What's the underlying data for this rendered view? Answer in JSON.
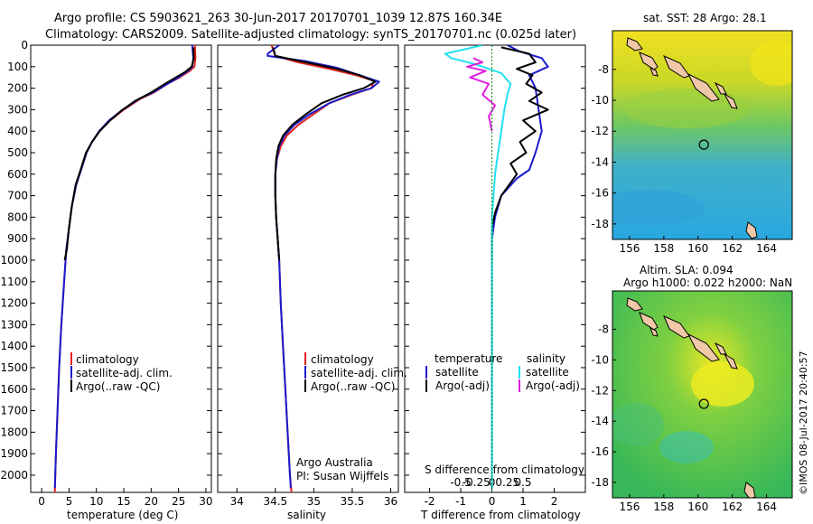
{
  "header": {
    "line1": "Argo profile: CS 5903621_263 30-Jun-2017 20170701_1039 12.87S 160.34E",
    "line2": "Climatology: CARS2009. Satellite-adjusted climatology: synTS_20170701.nc (0.025d later)"
  },
  "side_stamp": "©IMOS 08-Jul-2017 20:40:57",
  "colors": {
    "climatology": "#e02020",
    "satellite": "#1a1acc",
    "argo": "#000000",
    "sat_salinity": "#22e0ee",
    "argo_salinity": "#e020e0"
  },
  "chart_data": [
    {
      "id": "temperature",
      "type": "line",
      "xlabel": "temperature (deg C)",
      "ylabel": "",
      "xlim": [
        -2,
        31
      ],
      "ylim": [
        2080,
        0
      ],
      "xticks": [
        0,
        5,
        10,
        15,
        20,
        25,
        30
      ],
      "yticks": [
        0,
        100,
        200,
        300,
        400,
        500,
        600,
        700,
        800,
        900,
        1000,
        1100,
        1200,
        1300,
        1400,
        1500,
        1600,
        1700,
        1800,
        1900,
        2000
      ],
      "legend": [
        "climatology",
        "satellite-adj. clim.",
        "Argo(..raw -QC)"
      ],
      "legend_position": "lower-center",
      "series": [
        {
          "name": "climatology",
          "color": "#e02020",
          "points": [
            [
              28,
              0
            ],
            [
              28.1,
              60
            ],
            [
              27.9,
              100
            ],
            [
              27,
              120
            ],
            [
              25.2,
              150
            ],
            [
              23,
              180
            ],
            [
              20.5,
              220
            ],
            [
              18,
              250
            ],
            [
              15,
              300
            ],
            [
              12.5,
              350
            ],
            [
              10.5,
              400
            ],
            [
              9.2,
              450
            ],
            [
              8.2,
              500
            ],
            [
              7.2,
              580
            ],
            [
              6.3,
              650
            ],
            [
              5.5,
              750
            ],
            [
              5,
              850
            ],
            [
              4.5,
              950
            ],
            [
              4.1,
              1100
            ],
            [
              3.6,
              1300
            ],
            [
              3.2,
              1500
            ],
            [
              2.9,
              1700
            ],
            [
              2.6,
              1900
            ],
            [
              2.4,
              2080
            ]
          ]
        },
        {
          "name": "satellite-adj. clim.",
          "color": "#1a1acc",
          "points": [
            [
              27.5,
              0
            ],
            [
              27.7,
              60
            ],
            [
              27.5,
              100
            ],
            [
              26.7,
              120
            ],
            [
              25,
              150
            ],
            [
              23,
              180
            ],
            [
              20.3,
              220
            ],
            [
              17.8,
              250
            ],
            [
              14.8,
              300
            ],
            [
              12.3,
              350
            ],
            [
              10.5,
              400
            ],
            [
              9.2,
              450
            ],
            [
              8.2,
              500
            ],
            [
              7.2,
              580
            ],
            [
              6.3,
              650
            ],
            [
              5.5,
              750
            ],
            [
              5,
              850
            ],
            [
              4.5,
              950
            ],
            [
              4.1,
              1100
            ],
            [
              3.6,
              1300
            ],
            [
              3.2,
              1500
            ],
            [
              2.9,
              1700
            ],
            [
              2.6,
              1900
            ],
            [
              2.4,
              2060
            ]
          ]
        },
        {
          "name": "Argo(..raw -QC)",
          "color": "#000000",
          "points": [
            [
              27.7,
              10
            ],
            [
              27.8,
              60
            ],
            [
              27.4,
              100
            ],
            [
              26.2,
              125
            ],
            [
              24.5,
              150
            ],
            [
              22.5,
              180
            ],
            [
              20,
              220
            ],
            [
              17,
              260
            ],
            [
              14.8,
              300
            ],
            [
              12.5,
              350
            ],
            [
              10.6,
              400
            ],
            [
              9.2,
              450
            ],
            [
              8.1,
              500
            ],
            [
              7.1,
              580
            ],
            [
              6.2,
              650
            ],
            [
              5.5,
              750
            ],
            [
              5,
              850
            ],
            [
              4.6,
              950
            ],
            [
              4.2,
              1000
            ]
          ]
        }
      ]
    },
    {
      "id": "salinity",
      "type": "line",
      "xlabel": "salinity",
      "xlim": [
        33.75,
        36.1
      ],
      "ylim": [
        2080,
        0
      ],
      "xticks": [
        34,
        34.5,
        35,
        35.5,
        36
      ],
      "legend": [
        "climatology",
        "satellite-adj. clim.",
        "Argo(..raw -QC)"
      ],
      "legend_position": "lower-center",
      "annotation": [
        "Argo Australia",
        "PI: Susan Wijffels"
      ],
      "series": [
        {
          "name": "climatology",
          "color": "#e02020",
          "points": [
            [
              34.45,
              0
            ],
            [
              34.5,
              50
            ],
            [
              34.8,
              80
            ],
            [
              35.2,
              110
            ],
            [
              35.55,
              140
            ],
            [
              35.78,
              165
            ],
            [
              35.75,
              200
            ],
            [
              35.5,
              230
            ],
            [
              35.2,
              270
            ],
            [
              35.0,
              320
            ],
            [
              34.8,
              370
            ],
            [
              34.65,
              420
            ],
            [
              34.57,
              470
            ],
            [
              34.52,
              530
            ],
            [
              34.5,
              600
            ],
            [
              34.5,
              700
            ],
            [
              34.51,
              800
            ],
            [
              34.53,
              900
            ],
            [
              34.55,
              1000
            ],
            [
              34.57,
              1200
            ],
            [
              34.6,
              1400
            ],
            [
              34.63,
              1600
            ],
            [
              34.66,
              1800
            ],
            [
              34.69,
              2000
            ],
            [
              34.71,
              2080
            ]
          ]
        },
        {
          "name": "satellite-adj. clim.",
          "color": "#1a1acc",
          "points": [
            [
              34.55,
              0
            ],
            [
              34.4,
              40
            ],
            [
              34.4,
              50
            ],
            [
              34.9,
              75
            ],
            [
              35.3,
              105
            ],
            [
              35.6,
              140
            ],
            [
              35.85,
              170
            ],
            [
              35.75,
              200
            ],
            [
              35.48,
              230
            ],
            [
              35.2,
              270
            ],
            [
              34.95,
              320
            ],
            [
              34.75,
              370
            ],
            [
              34.62,
              420
            ],
            [
              34.55,
              470
            ],
            [
              34.52,
              530
            ],
            [
              34.5,
              600
            ],
            [
              34.5,
              700
            ],
            [
              34.51,
              800
            ],
            [
              34.53,
              900
            ],
            [
              34.55,
              1000
            ],
            [
              34.57,
              1200
            ],
            [
              34.6,
              1400
            ],
            [
              34.63,
              1600
            ],
            [
              34.66,
              1800
            ],
            [
              34.69,
              2000
            ],
            [
              34.7,
              2060
            ]
          ]
        },
        {
          "name": "Argo(..raw -QC)",
          "color": "#000000",
          "points": [
            [
              34.47,
              10
            ],
            [
              34.5,
              50
            ],
            [
              34.9,
              80
            ],
            [
              35.3,
              110
            ],
            [
              35.6,
              140
            ],
            [
              35.8,
              170
            ],
            [
              35.65,
              200
            ],
            [
              35.38,
              230
            ],
            [
              35.1,
              270
            ],
            [
              34.9,
              320
            ],
            [
              34.72,
              370
            ],
            [
              34.6,
              420
            ],
            [
              34.54,
              470
            ],
            [
              34.51,
              530
            ],
            [
              34.5,
              600
            ],
            [
              34.5,
              700
            ],
            [
              34.51,
              800
            ],
            [
              34.53,
              900
            ],
            [
              34.55,
              1000
            ]
          ]
        }
      ]
    },
    {
      "id": "difference",
      "type": "line",
      "xlabel": "T difference from climatology",
      "xlabel_top": "S difference from climatology",
      "xlim": [
        -2.8,
        3.0
      ],
      "ylim": [
        2080,
        0
      ],
      "xticks": [
        -2,
        -1,
        0,
        1,
        2
      ],
      "xticks_top": [
        "-0.5",
        "-0.25",
        "0",
        "0.25",
        "0.5"
      ],
      "legend_temperature_title": "temperature",
      "legend_salinity_title": "salinity",
      "legend_temperature": [
        "satellite",
        "Argo(-adj)"
      ],
      "legend_salinity": [
        "satellite",
        "Argo(-adj)"
      ],
      "series": [
        {
          "name": "temperature satellite",
          "color": "#1a1acc",
          "points": [
            [
              0.5,
              0
            ],
            [
              0.9,
              30
            ],
            [
              1.6,
              60
            ],
            [
              1.8,
              100
            ],
            [
              1.2,
              140
            ],
            [
              1.4,
              200
            ],
            [
              1.5,
              300
            ],
            [
              1.6,
              400
            ],
            [
              1.4,
              500
            ],
            [
              1.2,
              580
            ],
            [
              0.8,
              620
            ],
            [
              0.3,
              700
            ],
            [
              0.1,
              800
            ],
            [
              0.0,
              900
            ],
            [
              0.0,
              2060
            ]
          ]
        },
        {
          "name": "temperature Argo(-adj)",
          "color": "#000000",
          "points": [
            [
              0.3,
              10
            ],
            [
              1.2,
              40
            ],
            [
              1.4,
              80
            ],
            [
              0.8,
              110
            ],
            [
              1.3,
              140
            ],
            [
              1.1,
              180
            ],
            [
              1.6,
              220
            ],
            [
              1.2,
              260
            ],
            [
              1.8,
              300
            ],
            [
              1.0,
              350
            ],
            [
              1.4,
              400
            ],
            [
              0.9,
              450
            ],
            [
              1.1,
              500
            ],
            [
              0.6,
              550
            ],
            [
              0.8,
              600
            ],
            [
              0.3,
              700
            ],
            [
              0.1,
              780
            ],
            [
              0.0,
              850
            ],
            [
              0.0,
              1000
            ]
          ]
        },
        {
          "name": "salinity satellite",
          "color": "#22e0ee",
          "points": [
            [
              -0.3,
              0
            ],
            [
              -1.5,
              40
            ],
            [
              -1.3,
              60
            ],
            [
              -0.5,
              90
            ],
            [
              0.3,
              130
            ],
            [
              0.6,
              180
            ],
            [
              0.5,
              230
            ],
            [
              0.4,
              300
            ],
            [
              0.3,
              400
            ],
            [
              0.2,
              500
            ],
            [
              0.1,
              600
            ],
            [
              0.05,
              700
            ],
            [
              0.0,
              800
            ],
            [
              0.0,
              2060
            ]
          ]
        },
        {
          "name": "salinity Argo(-adj)",
          "color": "#e020e0",
          "points": [
            [
              -0.6,
              60
            ],
            [
              -0.3,
              80
            ],
            [
              -0.8,
              100
            ],
            [
              -0.2,
              120
            ],
            [
              -0.7,
              150
            ],
            [
              -0.1,
              180
            ],
            [
              -0.3,
              230
            ],
            [
              0.1,
              280
            ],
            [
              -0.1,
              330
            ],
            [
              0.0,
              400
            ]
          ]
        }
      ]
    }
  ],
  "maps": [
    {
      "id": "sst",
      "title": "sat. SST: 28  Argo: 28.1",
      "lon_ticks": [
        "156",
        "158",
        "160",
        "162",
        "164"
      ],
      "lat_ticks": [
        "-8",
        "-10",
        "-12",
        "-14",
        "-16",
        "-18"
      ],
      "lon_range": [
        155,
        165.5
      ],
      "lat_range": [
        -19,
        -5.5
      ],
      "argo_location": {
        "lon": 160.34,
        "lat": -12.87
      }
    },
    {
      "id": "sla",
      "title_line1": "Altim. SLA: 0.094",
      "title_line2": "Argo h1000: 0.022 h2000: NaN",
      "lon_ticks": [
        "156",
        "158",
        "160",
        "162",
        "164"
      ],
      "lat_ticks": [
        "-8",
        "-10",
        "-12",
        "-14",
        "-16",
        "-18"
      ],
      "lon_range": [
        155,
        165.5
      ],
      "lat_range": [
        -19,
        -5.5
      ],
      "argo_location": {
        "lon": 160.34,
        "lat": -12.87
      }
    }
  ]
}
